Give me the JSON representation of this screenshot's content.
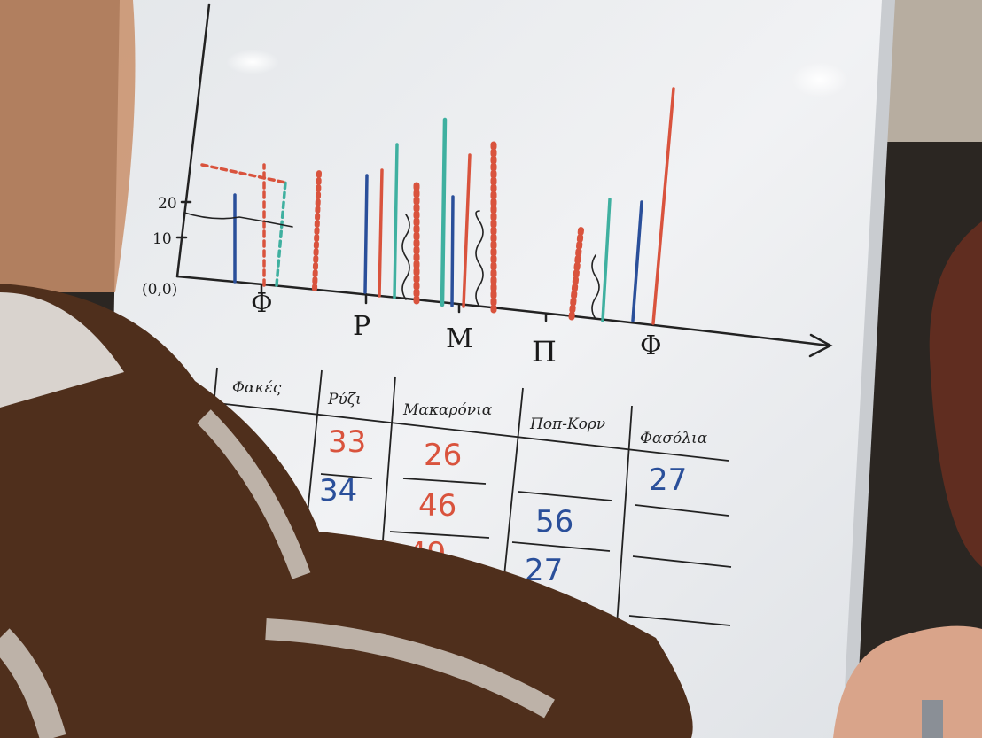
{
  "whiteboard": {
    "axis_labels": [
      "(0,0)",
      "10",
      "20"
    ],
    "categories": [
      "Φ",
      "Ρ",
      "Μ",
      "Π",
      "Φ"
    ]
  },
  "table": {
    "columns": [
      {
        "header": "Φακές"
      },
      {
        "header": "Ρύζι",
        "cells": [
          33,
          34
        ]
      },
      {
        "header": "Μακαρόνια",
        "cells": [
          26,
          46,
          49
        ]
      },
      {
        "header": "Ποπ-Κορν",
        "cells": [
          56,
          27
        ]
      },
      {
        "header": "Φασόλια",
        "cells": [
          27
        ]
      }
    ]
  }
}
